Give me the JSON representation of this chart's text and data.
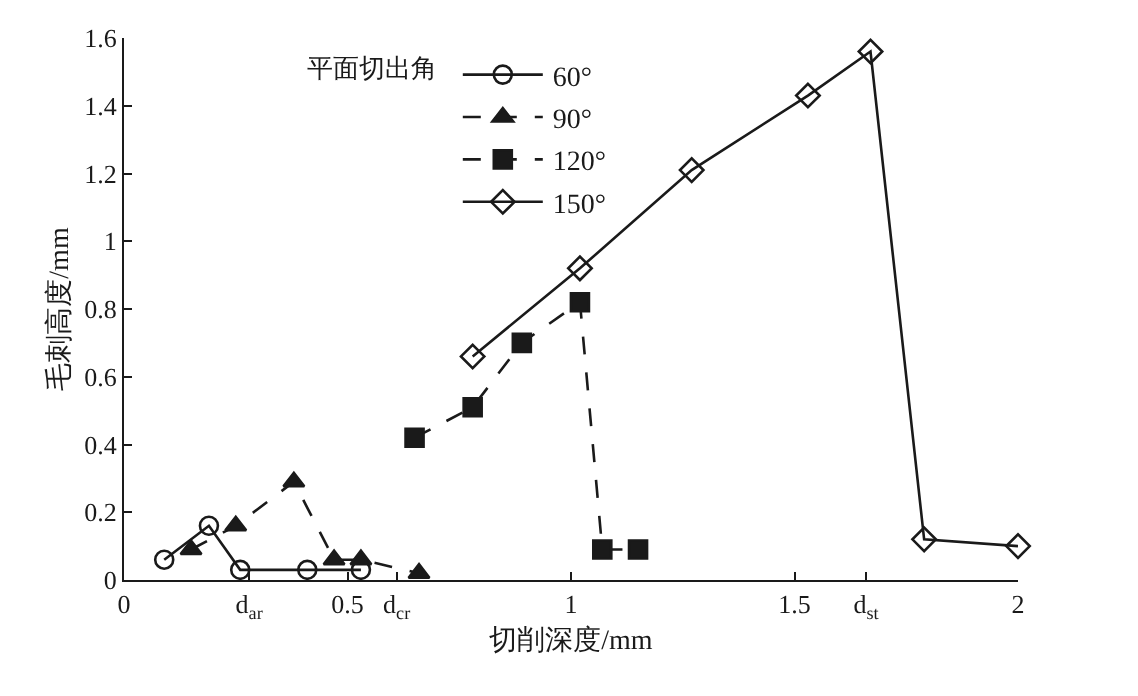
{
  "chart_data": {
    "type": "line",
    "xlabel": "切削深度/mm",
    "ylabel": "毛刺高度/mm",
    "legend_title": "平面切出角",
    "legend": "top",
    "xlim": [
      0,
      2
    ],
    "xticks": [
      0,
      {
        "value": 0.28,
        "label": "d$_{ar}$"
      },
      0.5,
      {
        "value": 0.61,
        "label": "d$_{cr}$"
      },
      1,
      1.5,
      {
        "value": 1.66,
        "label": "d$_{st}$"
      },
      2
    ],
    "ylim": [
      0,
      1.6
    ],
    "yticks": [
      0,
      0.2,
      0.4,
      0.6,
      0.8,
      1,
      1.2,
      1.4,
      1.6
    ],
    "series": [
      {
        "name": "60°",
        "color": "#1a1a1a",
        "marker": "circle",
        "line_style": "solid",
        "x": [
          0.09,
          0.19,
          0.26,
          0.41,
          0.53
        ],
        "values": [
          0.06,
          0.16,
          0.03,
          0.03,
          0.03
        ]
      },
      {
        "name": "90°",
        "color": "#1a1a1a",
        "marker": "triangle",
        "line_style": "dashed",
        "x": [
          0.15,
          0.25,
          0.38,
          0.47,
          0.53,
          0.66
        ],
        "values": [
          0.09,
          0.16,
          0.29,
          0.06,
          0.06,
          0.02
        ]
      },
      {
        "name": "120°",
        "color": "#1a1a1a",
        "marker": "square",
        "line_style": "dashed",
        "x": [
          0.65,
          0.78,
          0.89,
          1.02,
          1.07,
          1.15
        ],
        "values": [
          0.42,
          0.51,
          0.7,
          0.82,
          0.09,
          0.09
        ]
      },
      {
        "name": "150°",
        "color": "#1a1a1a",
        "marker": "diamond",
        "line_style": "solid",
        "x": [
          0.78,
          1.02,
          1.27,
          1.53,
          1.67,
          1.79,
          2.0
        ],
        "values": [
          0.66,
          0.92,
          1.21,
          1.43,
          1.56,
          0.12,
          0.1
        ]
      }
    ]
  }
}
